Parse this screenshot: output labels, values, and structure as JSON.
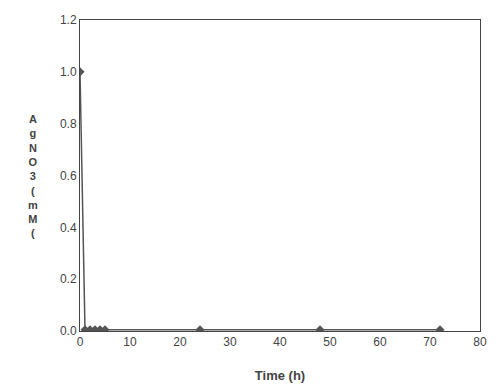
{
  "chart_data": {
    "type": "line",
    "x": [
      0,
      1,
      2,
      3,
      4,
      5,
      24,
      48,
      72
    ],
    "values": [
      1.0,
      0.005,
      0.005,
      0.005,
      0.005,
      0.005,
      0.005,
      0.005,
      0.005
    ],
    "xlabel": "Time (h)",
    "ylabel": "A\ng\nN\nO\n3\n(\nm\nM\n(",
    "xlim": [
      0,
      80
    ],
    "ylim": [
      0,
      1.2
    ],
    "xticks": [
      0,
      10,
      20,
      30,
      40,
      50,
      60,
      70,
      80
    ],
    "yticks": [
      {
        "value": 0,
        "label": "0.0"
      },
      0.2,
      0.4,
      0.6,
      0.8,
      {
        "value": 1.0,
        "label": "1.0"
      },
      1.2
    ],
    "color": "#555555",
    "marker": "diamond",
    "line_style": "solid",
    "grid": false
  }
}
